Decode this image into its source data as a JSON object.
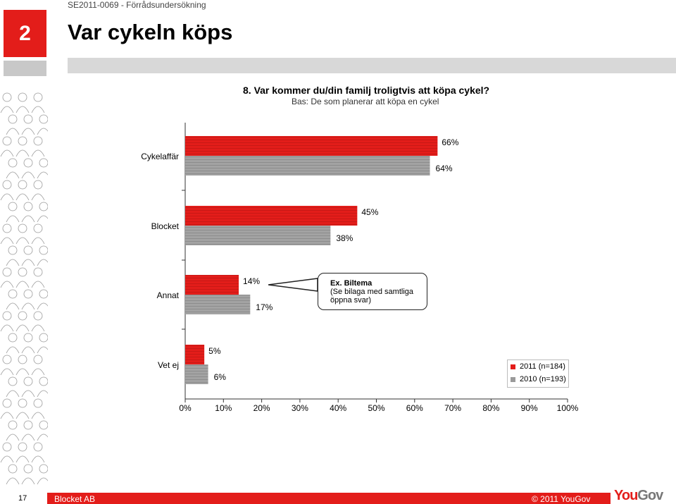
{
  "header": {
    "doc_id": "SE2011-0069 - Förrådsundersökning",
    "section_number": "2",
    "page_title": "Var cykeln köps"
  },
  "question": {
    "title": "8. Var kommer du/din familj troligtvis att köpa cykel?",
    "subtitle": "Bas: De som planerar att köpa en cykel"
  },
  "callout": {
    "title": "Ex. Biltema",
    "line1": "(Se bilaga med samtliga",
    "line2": "öppna svar)"
  },
  "legend": {
    "items": [
      {
        "label": "2011 (n=184)",
        "color": "#e31d1a"
      },
      {
        "label": "2010 (n=193)",
        "color": "#9a9a9a"
      }
    ]
  },
  "footer": {
    "page_number": "17",
    "company": "Blocket AB",
    "copyright": "© 2011 YouGov",
    "logo_main": "You",
    "logo_accent": "Gov"
  },
  "chart_data": {
    "type": "bar",
    "orientation": "horizontal",
    "categories": [
      "Cykelaffär",
      "Blocket",
      "Annat",
      "Vet ej"
    ],
    "series": [
      {
        "name": "2011 (n=184)",
        "values": [
          66,
          45,
          14,
          5
        ],
        "color": "#e31d1a"
      },
      {
        "name": "2010 (n=193)",
        "values": [
          64,
          38,
          17,
          6
        ],
        "color": "#9a9a9a"
      }
    ],
    "value_suffix": "%",
    "xlim": [
      0,
      100
    ],
    "xticks": [
      0,
      10,
      20,
      30,
      40,
      50,
      60,
      70,
      80,
      90,
      100
    ],
    "xtick_labels": [
      "0%",
      "10%",
      "20%",
      "30%",
      "40%",
      "50%",
      "60%",
      "70%",
      "80%",
      "90%",
      "100%"
    ],
    "legend_position": "right"
  }
}
